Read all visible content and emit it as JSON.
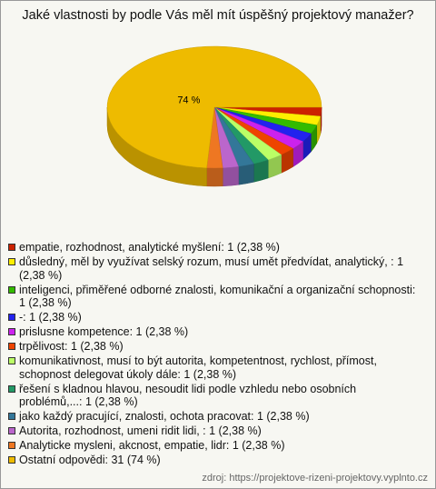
{
  "chart_data": {
    "type": "pie",
    "title": "Jaké vlastnosti by podle Vás měl mít úspěšný projektový manažer?",
    "categories": [
      "empatie, rozhodnost, analytické myšlení: 1 (2,38 %)",
      "důsledný, měl by využívat selský rozum, musí umět předvídat, analytický, : 1 (2,38 %)",
      "inteligenci, přiměřené odborné znalosti, komunikační a organizační schopnosti: 1 (2,38 %)",
      "-: 1 (2,38 %)",
      "prislusne kompetence: 1 (2,38 %)",
      "trpělivost: 1 (2,38 %)",
      "komunikativnost, musí to být autorita, kompetentnost, rychlost, přímost, schopnost delegovat úkoly dále: 1 (2,38 %)",
      "řešení s kladnou hlavou, nesoudit lidi podle vzhledu nebo osobních problémů,...: 1 (2,38 %)",
      "jako každý pracující, znalosti, ochota pracovat: 1 (2,38 %)",
      "Autorita, rozhodnost, umeni ridit lidi, : 1 (2,38 %)",
      "Analyticke mysleni, akcnost, empatie, lidr: 1 (2,38 %)",
      "Ostatní odpovědi: 31 (74 %)"
    ],
    "values": [
      2.38,
      2.38,
      2.38,
      2.38,
      2.38,
      2.38,
      2.38,
      2.38,
      2.38,
      2.38,
      2.38,
      74
    ],
    "value_labels": [
      null,
      null,
      null,
      null,
      null,
      null,
      null,
      null,
      null,
      null,
      null,
      "74 %"
    ],
    "colors": [
      "#cc2200",
      "#ffee00",
      "#33bb00",
      "#2222ee",
      "#cc22ee",
      "#ee4400",
      "#bbff66",
      "#229966",
      "#337799",
      "#bb66cc",
      "#ee7722",
      "#eebb00"
    ],
    "source": "zdroj: https://projektove-rizeni-projektovy.vyplnto.cz"
  }
}
